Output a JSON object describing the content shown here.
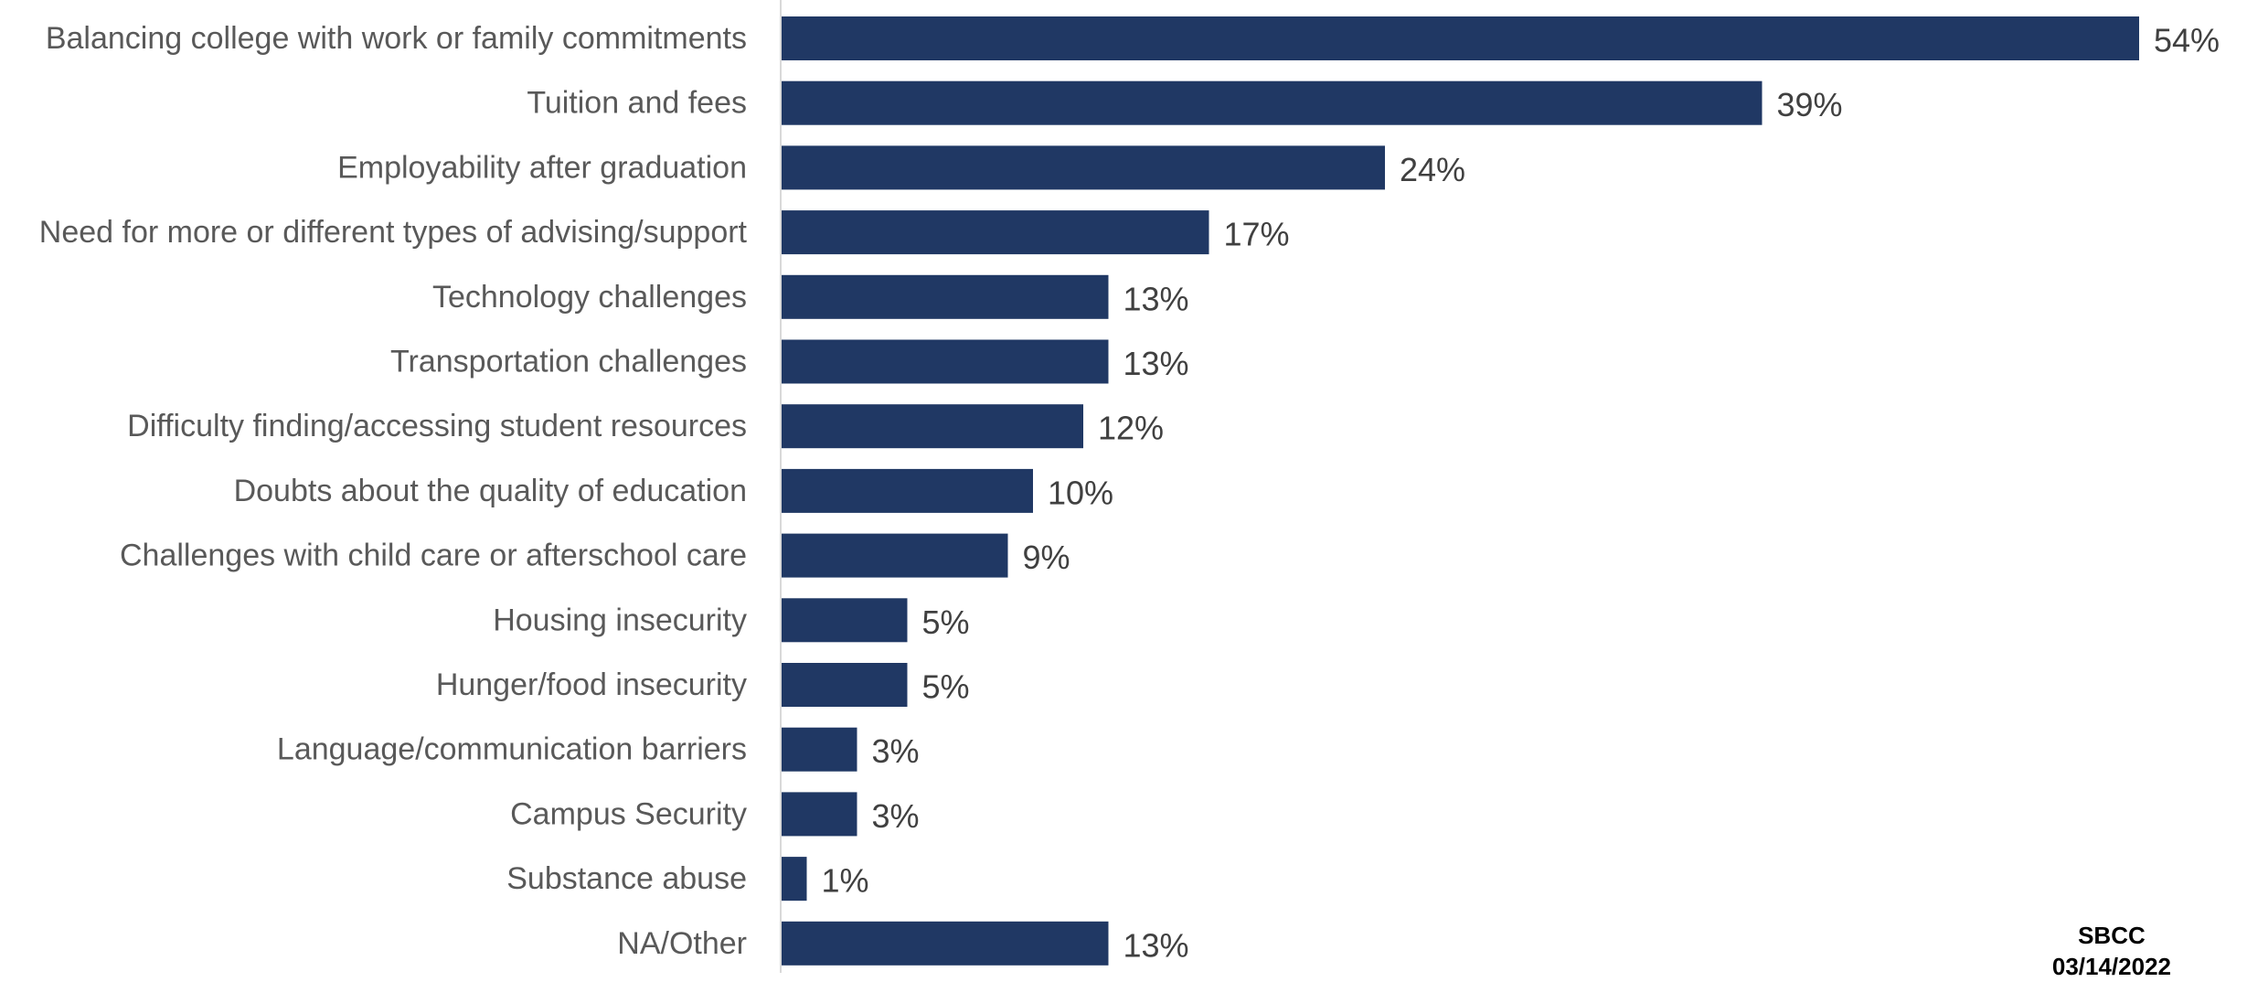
{
  "chart_data": {
    "type": "bar",
    "orientation": "horizontal",
    "categories": [
      "Balancing college with work or family commitments",
      "Tuition and fees",
      "Employability after graduation",
      "Need for more or different types of advising/support",
      "Technology challenges",
      "Transportation challenges",
      "Difficulty finding/accessing student resources",
      "Doubts about the quality of education",
      "Challenges with child care or afterschool care",
      "Housing insecurity",
      "Hunger/food insecurity",
      "Language/communication barriers",
      "Campus Security",
      "Substance abuse",
      "NA/Other"
    ],
    "values": [
      54,
      39,
      24,
      17,
      13,
      13,
      12,
      10,
      9,
      5,
      5,
      3,
      3,
      1,
      13
    ],
    "value_labels": [
      "54%",
      "39%",
      "24%",
      "17%",
      "13%",
      "13%",
      "12%",
      "10%",
      "9%",
      "5%",
      "5%",
      "3%",
      "3%",
      "1%",
      "13%"
    ],
    "unit": "%",
    "xlim": [
      0,
      54
    ],
    "grid": false,
    "legend": "none",
    "bar_color": "#203864",
    "axis_color": "#d9d9d9"
  },
  "footer": {
    "org": "SBCC",
    "date": "03/14/2022"
  }
}
